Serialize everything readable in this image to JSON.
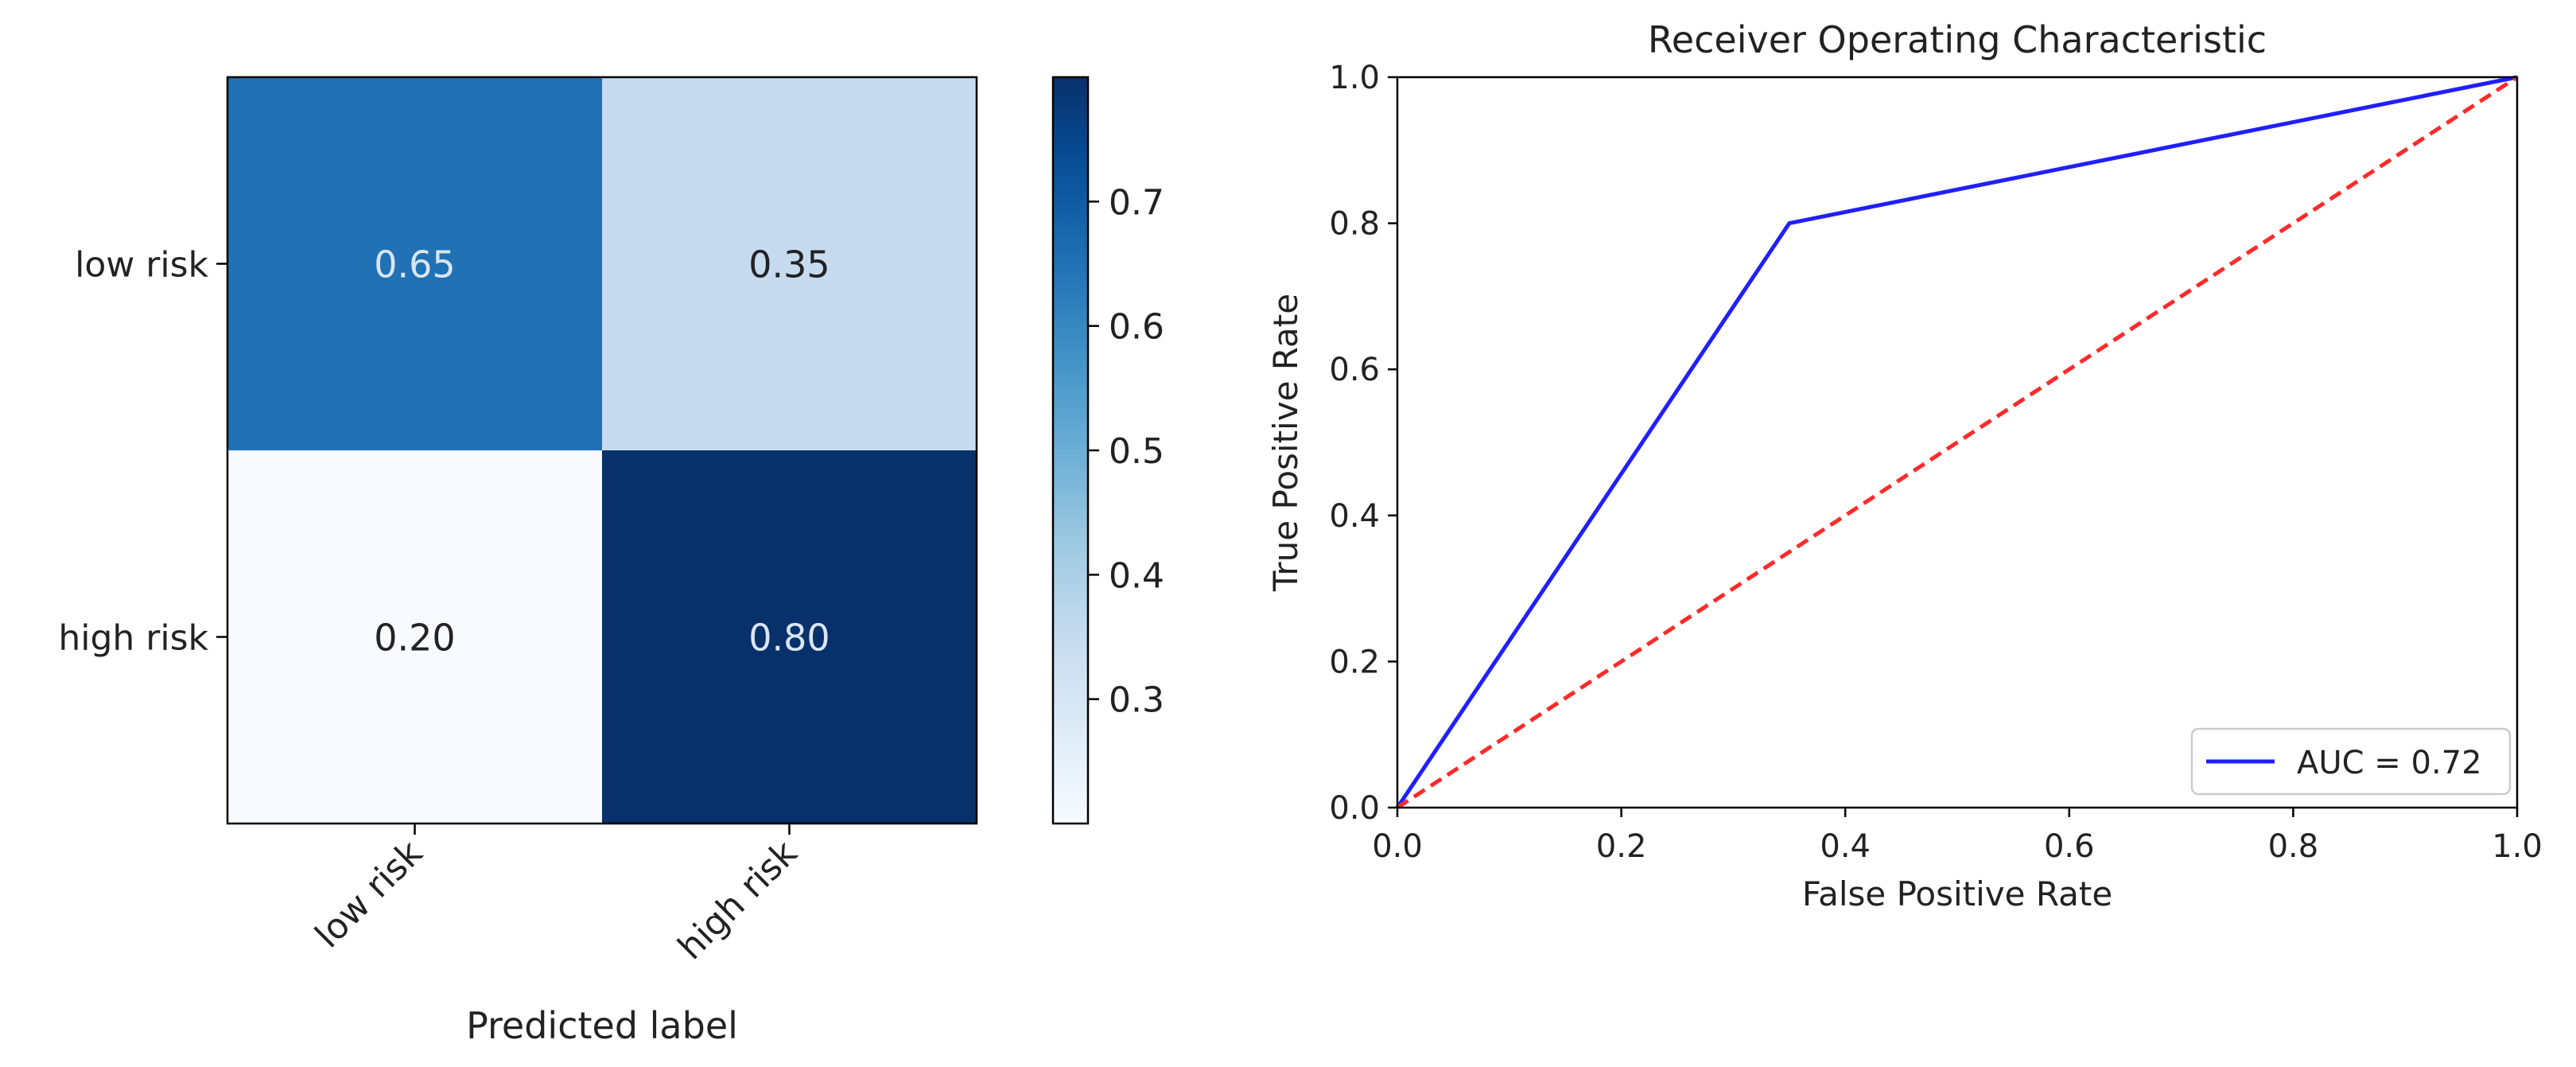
{
  "chart_data": [
    {
      "type": "heatmap",
      "title": "",
      "xlabel": "Predicted label",
      "ylabel": "",
      "x_categories": [
        "low risk",
        "high risk"
      ],
      "y_categories": [
        "low risk",
        "high risk"
      ],
      "values": [
        [
          0.65,
          0.35
        ],
        [
          0.2,
          0.8
        ]
      ],
      "cell_labels": [
        [
          "0.65",
          "0.35"
        ],
        [
          "0.20",
          "0.80"
        ]
      ],
      "colormap": "Blues",
      "color_range": [
        0.2,
        0.8
      ],
      "colorbar_ticks": [
        {
          "value": 0.3,
          "label": "0.3"
        },
        {
          "value": 0.4,
          "label": "0.4"
        },
        {
          "value": 0.5,
          "label": "0.5"
        },
        {
          "value": 0.6,
          "label": "0.6"
        },
        {
          "value": 0.7,
          "label": "0.7"
        }
      ],
      "cell_text_colors": {
        "light": "#d9e6f2",
        "dark": "#222222"
      }
    },
    {
      "type": "line",
      "title": "Receiver Operating Characteristic",
      "xlabel": "False Positive Rate",
      "ylabel": "True Positive Rate",
      "xlim": [
        0,
        1
      ],
      "ylim": [
        0,
        1
      ],
      "xticks": [
        "0.0",
        "0.2",
        "0.4",
        "0.6",
        "0.8",
        "1.0"
      ],
      "yticks": [
        "0.0",
        "0.2",
        "0.4",
        "0.6",
        "0.8",
        "1.0"
      ],
      "grid": false,
      "legend_position": "bottom-right",
      "series": [
        {
          "name": "AUC = 0.72",
          "x": [
            0,
            0.35,
            1
          ],
          "y": [
            0,
            0.8,
            1
          ],
          "color": "#1f1fff",
          "style": "solid"
        },
        {
          "x": [
            0,
            1
          ],
          "y": [
            0,
            1
          ],
          "color": "#ff2a2a",
          "style": "dashed"
        }
      ]
    }
  ]
}
